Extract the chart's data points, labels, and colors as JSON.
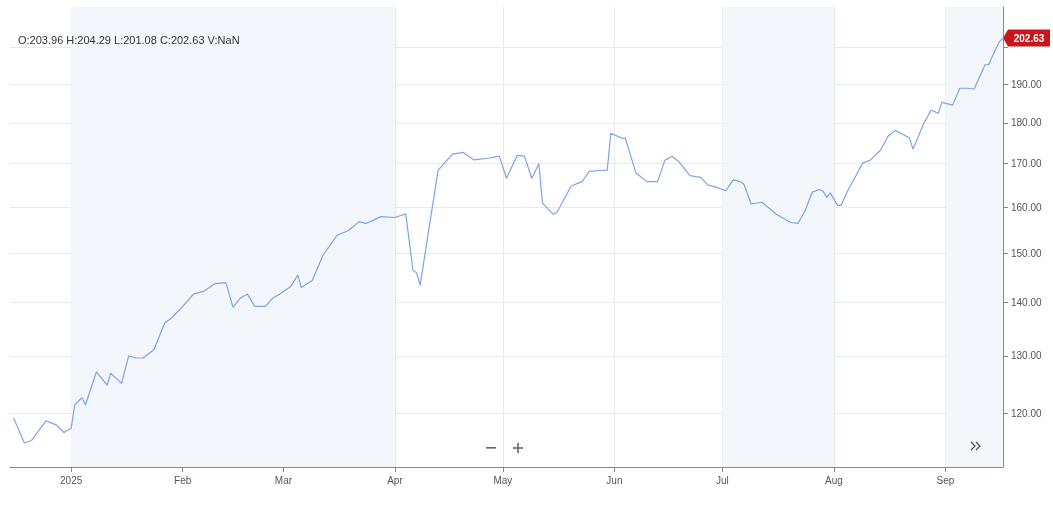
{
  "chart_data": {
    "type": "line",
    "x": [
      "2024-12-16",
      "2024-12-19",
      "2024-12-21",
      "2024-12-25",
      "2024-12-28",
      "2024-12-30",
      "2025-01-01",
      "2025-01-02",
      "2025-01-04",
      "2025-01-05",
      "2025-01-08",
      "2025-01-11",
      "2025-01-12",
      "2025-01-15",
      "2025-01-17",
      "2025-01-19",
      "2025-01-21",
      "2025-01-24",
      "2025-01-27",
      "2025-01-29",
      "2025-02-01",
      "2025-02-04",
      "2025-02-07",
      "2025-02-10",
      "2025-02-13",
      "2025-02-15",
      "2025-02-17",
      "2025-02-19",
      "2025-02-21",
      "2025-02-24",
      "2025-02-26",
      "2025-02-28",
      "2025-03-03",
      "2025-03-05",
      "2025-03-06",
      "2025-03-09",
      "2025-03-12",
      "2025-03-16",
      "2025-03-19",
      "2025-03-22",
      "2025-03-24",
      "2025-03-27",
      "2025-03-28",
      "2025-04-01",
      "2025-04-04",
      "2025-04-06",
      "2025-04-07",
      "2025-04-08",
      "2025-04-13",
      "2025-04-17",
      "2025-04-20",
      "2025-04-23",
      "2025-04-27",
      "2025-04-30",
      "2025-05-02",
      "2025-05-05",
      "2025-05-07",
      "2025-05-09",
      "2025-05-11",
      "2025-05-12",
      "2025-05-15",
      "2025-05-16",
      "2025-05-20",
      "2025-05-23",
      "2025-05-25",
      "2025-05-28",
      "2025-05-30",
      "2025-05-31",
      "2025-06-03",
      "2025-06-04",
      "2025-06-07",
      "2025-06-10",
      "2025-06-13",
      "2025-06-15",
      "2025-06-17",
      "2025-06-19",
      "2025-06-22",
      "2025-06-25",
      "2025-06-27",
      "2025-06-29",
      "2025-07-02",
      "2025-07-04",
      "2025-07-06",
      "2025-07-07",
      "2025-07-09",
      "2025-07-12",
      "2025-07-16",
      "2025-07-20",
      "2025-07-22",
      "2025-07-24",
      "2025-07-26",
      "2025-07-28",
      "2025-07-29",
      "2025-07-30",
      "2025-07-31",
      "2025-08-02",
      "2025-08-03",
      "2025-08-05",
      "2025-08-07",
      "2025-08-09",
      "2025-08-11",
      "2025-08-14",
      "2025-08-16",
      "2025-08-18",
      "2025-08-20",
      "2025-08-22",
      "2025-08-23",
      "2025-08-26",
      "2025-08-28",
      "2025-08-30",
      "2025-08-31",
      "2025-09-03",
      "2025-09-05",
      "2025-09-07",
      "2025-09-09",
      "2025-09-12",
      "2025-09-13",
      "2025-09-15",
      "2025-09-16",
      "2025-09-17"
    ],
    "series": [
      {
        "color": "#7ea3e6",
        "values": [
          119.2,
          115.1,
          115.5,
          118.7,
          118.0,
          116.8,
          117.5,
          121.4,
          122.6,
          121.4,
          127.1,
          124.8,
          126.9,
          125.1,
          130.0,
          129.6,
          129.6,
          131.1,
          136.1,
          137.1,
          139.3,
          141.7,
          142.3,
          143.8,
          144.0,
          139.1,
          140.9,
          141.7,
          139.3,
          139.3,
          140.9,
          141.7,
          143.2,
          145.5,
          143.0,
          144.4,
          149.6,
          153.9,
          154.8,
          156.8,
          156.4,
          157.5,
          157.9,
          157.7,
          158.5,
          146.5,
          146.0,
          143.5,
          168.5,
          172.3,
          172.7,
          170.9,
          171.3,
          171.8,
          166.6,
          172.0,
          171.8,
          166.6,
          170.0,
          160.9,
          158.4,
          158.8,
          164.8,
          165.8,
          168.2,
          168.4,
          168.5,
          177.4,
          176.2,
          176.2,
          167.8,
          165.8,
          165.8,
          170.8,
          171.8,
          170.4,
          167.2,
          166.8,
          165.0,
          164.6,
          163.7,
          166.2,
          165.8,
          165.2,
          160.7,
          161.1,
          158.4,
          156.6,
          156.4,
          159.2,
          163.4,
          164.0,
          163.6,
          162.2,
          163.2,
          160.4,
          160.4,
          164.0,
          167.0,
          170.2,
          170.8,
          173.3,
          176.6,
          178.1,
          177.2,
          176.2,
          173.5,
          179.9,
          183.2,
          182.4,
          185.2,
          184.5,
          188.9,
          188.9,
          188.7,
          195.2,
          195.2,
          199.6,
          201.6,
          202.63
        ]
      }
    ],
    "xlim": [
      "2024-12-15",
      "2025-09-17"
    ],
    "xticks": [
      {
        "value": "2025-01-01",
        "label": "2025"
      },
      {
        "value": "2025-02-01",
        "label": "Feb"
      },
      {
        "value": "2025-03-01",
        "label": "Mar"
      },
      {
        "value": "2025-04-01",
        "label": "Apr"
      },
      {
        "value": "2025-05-01",
        "label": "May"
      },
      {
        "value": "2025-06-01",
        "label": "Jun"
      },
      {
        "value": "2025-07-01",
        "label": "Jul"
      },
      {
        "value": "2025-08-01",
        "label": "Aug"
      },
      {
        "value": "2025-09-01",
        "label": "Sep"
      }
    ],
    "ylim": [
      111.3,
      211.6
    ],
    "yticks": [
      {
        "value": 120,
        "label": "120.00"
      },
      {
        "value": 130,
        "label": "130.00"
      },
      {
        "value": 140,
        "label": "140.00"
      },
      {
        "value": 150,
        "label": "150.00"
      },
      {
        "value": 160,
        "label": "160.00"
      },
      {
        "value": 170,
        "label": "170.00"
      },
      {
        "value": 180,
        "label": "180.00"
      },
      {
        "value": 190,
        "label": "190.00"
      },
      {
        "value": 200,
        "label": null
      }
    ],
    "log": "y",
    "grid": true,
    "bands": [
      {
        "axis": "x",
        "from": "2025-01-01",
        "to": "2025-04-01",
        "color": "#f3f6fa"
      },
      {
        "axis": "x",
        "from": "2025-07-01",
        "to": "2025-08-01",
        "color": "#f3f6fa"
      },
      {
        "axis": "x",
        "from": "2025-09-01",
        "to": "2025-09-17",
        "color": "#f3f6fa"
      }
    ],
    "annotations": [
      "O:203.96 H:204.29 L:201.08 C:202.63 V:NaN",
      {
        "text": "202.63",
        "x": "2025-09-17",
        "y": 202.63
      }
    ]
  }
}
